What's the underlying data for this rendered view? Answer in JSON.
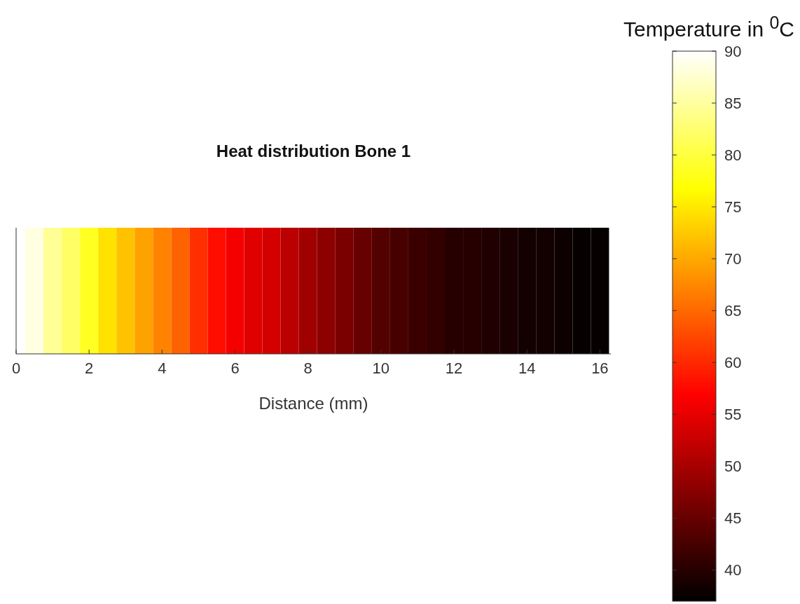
{
  "chart_data": {
    "type": "heatmap",
    "title": "Heat distribution Bone 1",
    "xlabel": "Distance (mm)",
    "clabel": "Temperature in $^{0}$C",
    "x": [
      0,
      0.5,
      1,
      1.5,
      2,
      2.5,
      3,
      3.5,
      4,
      4.5,
      5,
      5.5,
      6,
      6.5,
      7,
      7.5,
      8,
      8.5,
      9,
      9.5,
      10,
      10.5,
      11,
      11.5,
      12,
      12.5,
      13,
      13.5,
      14,
      14.5,
      15,
      15.5,
      16
    ],
    "y_categories": [
      null
    ],
    "cells": [
      [
        90,
        88.5,
        84.5,
        82,
        78.5,
        74.5,
        72,
        69.5,
        67,
        64.5,
        60.5,
        58,
        56,
        54.5,
        53.5,
        51.5,
        49.5,
        48,
        46.5,
        45,
        43.5,
        42.5,
        41.5,
        41,
        40,
        40,
        39.5,
        39,
        38.5,
        38.5,
        38,
        37.5,
        37.5
      ]
    ],
    "xlim": [
      0,
      16.3
    ],
    "xticks": [
      0,
      2,
      4,
      6,
      8,
      10,
      12,
      14,
      16
    ],
    "clim": [
      37,
      90
    ],
    "cticks": [
      40,
      45,
      50,
      55,
      60,
      65,
      70,
      75,
      80,
      85,
      90
    ],
    "tick_labels": "x"
  }
}
